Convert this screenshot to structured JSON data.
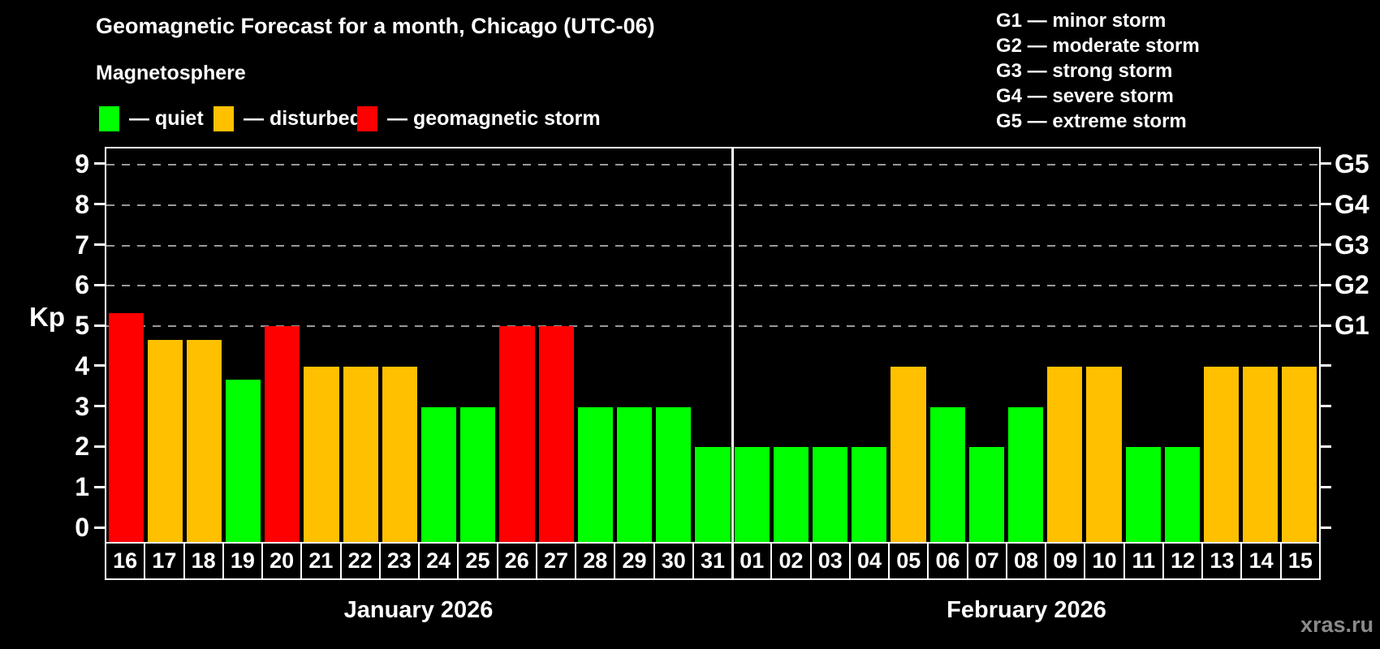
{
  "header": {
    "title": "Geomagnetic Forecast for a month, Chicago (UTC-06)",
    "subtitle": "Magnetosphere"
  },
  "legend": {
    "items": [
      {
        "label": "— quiet",
        "status": "quiet",
        "color": "#00ff00"
      },
      {
        "label": "— disturbed",
        "status": "disturbed",
        "color": "#ffc000"
      },
      {
        "label": "— geomagnetic storm",
        "status": "storm",
        "color": "#ff0000"
      }
    ]
  },
  "g_legend": {
    "items": [
      "G1 — minor storm",
      "G2 — moderate storm",
      "G3 — strong storm",
      "G4 — severe storm",
      "G5 — extreme storm"
    ]
  },
  "axes": {
    "kp_label": "Kp",
    "y_ticks": [
      "0",
      "1",
      "2",
      "3",
      "4",
      "5",
      "6",
      "7",
      "8",
      "9"
    ],
    "right_labels": [
      {
        "label": "G1",
        "kp": 5
      },
      {
        "label": "G2",
        "kp": 6
      },
      {
        "label": "G3",
        "kp": 7
      },
      {
        "label": "G4",
        "kp": 8
      },
      {
        "label": "G5",
        "kp": 9
      }
    ]
  },
  "months": [
    {
      "label": "January 2026",
      "days": 16
    },
    {
      "label": "February 2026",
      "days": 15
    }
  ],
  "watermark": "xras.ru",
  "chart_data": {
    "type": "bar",
    "title": "Geomagnetic Forecast for a month, Chicago (UTC-06)",
    "subtitle": "Magnetosphere",
    "xlabel": "",
    "ylabel": "Kp",
    "ylim": [
      0,
      9
    ],
    "grid": "dashed horizontal at G-storm levels",
    "gridlines_at": [
      5,
      6,
      7,
      8,
      9
    ],
    "legend_position": "top",
    "colors": {
      "quiet": "#00ff00",
      "disturbed": "#ffc000",
      "storm": "#ff0000"
    },
    "categories": [
      "16",
      "17",
      "18",
      "19",
      "20",
      "21",
      "22",
      "23",
      "24",
      "25",
      "26",
      "27",
      "28",
      "29",
      "30",
      "31",
      "01",
      "02",
      "03",
      "04",
      "05",
      "06",
      "07",
      "08",
      "09",
      "10",
      "11",
      "12",
      "13",
      "14",
      "15"
    ],
    "values": [
      5.33,
      4.67,
      4.67,
      3.67,
      5,
      4,
      4,
      4,
      3,
      3,
      5,
      5,
      3,
      3,
      3,
      2,
      2,
      2,
      2,
      2,
      4,
      3,
      2,
      3,
      4,
      4,
      2,
      2,
      4,
      4,
      4
    ],
    "statuses": [
      "storm",
      "disturbed",
      "disturbed",
      "quiet",
      "storm",
      "disturbed",
      "disturbed",
      "disturbed",
      "quiet",
      "quiet",
      "storm",
      "storm",
      "quiet",
      "quiet",
      "quiet",
      "quiet",
      "quiet",
      "quiet",
      "quiet",
      "quiet",
      "disturbed",
      "quiet",
      "quiet",
      "quiet",
      "disturbed",
      "disturbed",
      "quiet",
      "quiet",
      "disturbed",
      "disturbed",
      "disturbed"
    ]
  }
}
